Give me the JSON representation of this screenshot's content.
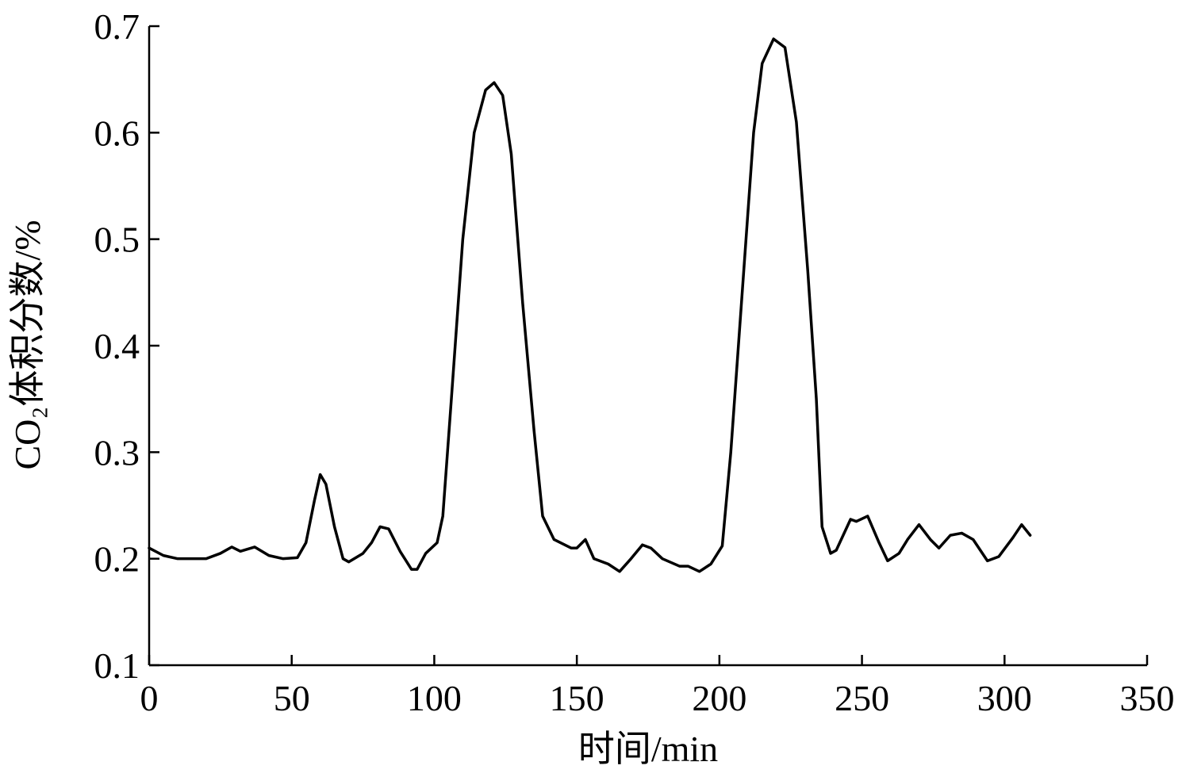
{
  "chart_data": {
    "type": "line",
    "x_label": "时间/min",
    "y_label": "CO₂体积分数/%",
    "xlim": [
      0,
      350
    ],
    "xticks": [
      0,
      50,
      100,
      150,
      200,
      250,
      300,
      350
    ],
    "ylim": [
      0.1,
      0.7
    ],
    "yticks": [
      0.1,
      0.2,
      0.3,
      0.4,
      0.5,
      0.6,
      0.7
    ],
    "grid": false,
    "series": [
      {
        "color": "#000000",
        "x": [
          0,
          5,
          10,
          20,
          25,
          29,
          32,
          37,
          42,
          47,
          52,
          55,
          58,
          60,
          62,
          65,
          68,
          70,
          75,
          78,
          81,
          84,
          88,
          92,
          94,
          97,
          101,
          103,
          106,
          110,
          114,
          118,
          121,
          124,
          127,
          131,
          135,
          138,
          142,
          148,
          150,
          153,
          156,
          161,
          165,
          169,
          173,
          176,
          180,
          186,
          189,
          193,
          197,
          201,
          204,
          208,
          212,
          215,
          219,
          223,
          227,
          231,
          234,
          236,
          239,
          241,
          246,
          248,
          252,
          256,
          259,
          263,
          266,
          270,
          274,
          277,
          281,
          285,
          289,
          294,
          298,
          303,
          306,
          309
        ],
        "values": [
          0.21,
          0.203,
          0.2,
          0.2,
          0.205,
          0.211,
          0.207,
          0.211,
          0.203,
          0.2,
          0.201,
          0.215,
          0.255,
          0.279,
          0.27,
          0.23,
          0.2,
          0.197,
          0.205,
          0.215,
          0.23,
          0.228,
          0.207,
          0.19,
          0.19,
          0.205,
          0.215,
          0.24,
          0.35,
          0.5,
          0.6,
          0.64,
          0.647,
          0.635,
          0.58,
          0.44,
          0.32,
          0.24,
          0.218,
          0.21,
          0.21,
          0.218,
          0.2,
          0.195,
          0.188,
          0.2,
          0.213,
          0.21,
          0.2,
          0.193,
          0.193,
          0.188,
          0.195,
          0.212,
          0.3,
          0.45,
          0.6,
          0.665,
          0.688,
          0.68,
          0.61,
          0.47,
          0.35,
          0.23,
          0.205,
          0.208,
          0.237,
          0.235,
          0.24,
          0.215,
          0.198,
          0.205,
          0.218,
          0.232,
          0.218,
          0.21,
          0.222,
          0.224,
          0.218,
          0.198,
          0.202,
          0.22,
          0.232,
          0.222
        ]
      }
    ]
  }
}
